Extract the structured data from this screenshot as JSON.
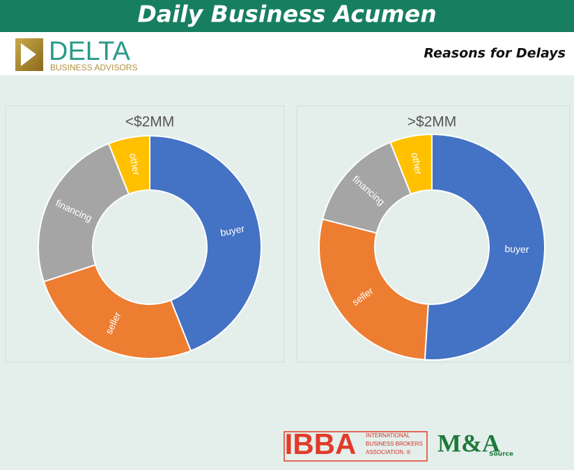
{
  "header": {
    "title": "Daily Business Acumen",
    "subtitle": "Reasons for Delays"
  },
  "logo": {
    "name": "DELTA",
    "tagline": "BUSINESS ADVISORS"
  },
  "footer": {
    "ibba": "IBBA",
    "ibba_text": [
      "INTERNATIONAL",
      "BUSINESS BROKERS",
      "ASSOCIATION. ®"
    ],
    "mna": "M&A",
    "mna_sub": "Source"
  },
  "chart_data": [
    {
      "type": "donut",
      "title": "<$2MM",
      "categories": [
        "buyer",
        "seller",
        "financing",
        "other"
      ],
      "values": [
        44,
        26,
        24,
        6
      ],
      "colors": [
        "#4472c4",
        "#ed7d31",
        "#a5a5a5",
        "#ffc000"
      ]
    },
    {
      "type": "donut",
      "title": ">$2MM",
      "categories": [
        "buyer",
        "seller",
        "financing",
        "other"
      ],
      "values": [
        51,
        28,
        15,
        6
      ],
      "colors": [
        "#4472c4",
        "#ed7d31",
        "#a5a5a5",
        "#ffc000"
      ]
    }
  ]
}
